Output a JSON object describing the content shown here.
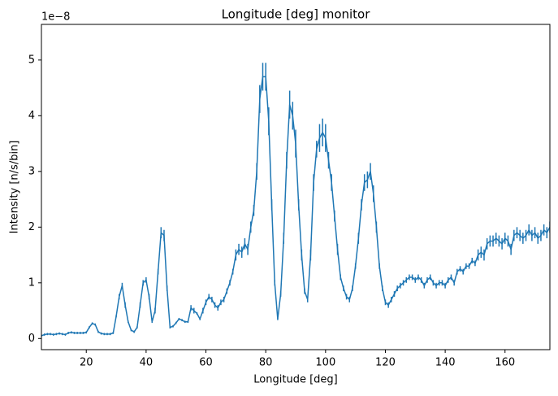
{
  "chart_data": {
    "type": "errorbar-line",
    "title": "Longitude [deg] monitor",
    "x_label": "Longitude [deg]",
    "y_label": "Intensity [n/s/bin]",
    "offset_text": "1e−8",
    "color": "#1f77b4",
    "xlim": [
      5,
      175
    ],
    "ylim": [
      -0.2,
      5.64
    ],
    "xticks": [
      20,
      40,
      60,
      80,
      100,
      120,
      140,
      160
    ],
    "yticks": [
      0,
      1,
      2,
      3,
      4,
      5
    ],
    "x": [
      5,
      6,
      7,
      8,
      9,
      10,
      11,
      12,
      13,
      14,
      15,
      16,
      17,
      18,
      19,
      20,
      21,
      22,
      23,
      24,
      25,
      26,
      27,
      28,
      29,
      30,
      31,
      32,
      33,
      34,
      35,
      36,
      37,
      38,
      39,
      40,
      41,
      42,
      43,
      44,
      45,
      46,
      47,
      48,
      49,
      50,
      51,
      52,
      53,
      54,
      55,
      56,
      57,
      58,
      59,
      60,
      61,
      62,
      63,
      64,
      65,
      66,
      67,
      68,
      69,
      70,
      71,
      72,
      73,
      74,
      75,
      76,
      77,
      78,
      79,
      80,
      81,
      82,
      83,
      84,
      85,
      86,
      87,
      88,
      89,
      90,
      91,
      92,
      93,
      94,
      95,
      96,
      97,
      98,
      99,
      100,
      101,
      102,
      103,
      104,
      105,
      106,
      107,
      108,
      109,
      110,
      111,
      112,
      113,
      114,
      115,
      116,
      117,
      118,
      119,
      120,
      121,
      122,
      123,
      124,
      125,
      126,
      127,
      128,
      129,
      130,
      131,
      132,
      133,
      134,
      135,
      136,
      137,
      138,
      139,
      140,
      141,
      142,
      143,
      144,
      145,
      146,
      147,
      148,
      149,
      150,
      151,
      152,
      153,
      154,
      155,
      156,
      157,
      158,
      159,
      160,
      161,
      162,
      163,
      164,
      165,
      166,
      167,
      168,
      169,
      170,
      171,
      172,
      173,
      174,
      175
    ],
    "values": [
      0.05,
      0.07,
      0.08,
      0.08,
      0.07,
      0.08,
      0.09,
      0.08,
      0.07,
      0.1,
      0.11,
      0.1,
      0.1,
      0.1,
      0.1,
      0.11,
      0.2,
      0.27,
      0.25,
      0.12,
      0.09,
      0.08,
      0.08,
      0.08,
      0.1,
      0.4,
      0.75,
      0.95,
      0.6,
      0.3,
      0.15,
      0.12,
      0.2,
      0.6,
      1.0,
      1.05,
      0.75,
      0.3,
      0.5,
      1.2,
      1.9,
      1.85,
      0.9,
      0.2,
      0.22,
      0.28,
      0.35,
      0.33,
      0.3,
      0.3,
      0.55,
      0.5,
      0.45,
      0.35,
      0.5,
      0.65,
      0.75,
      0.7,
      0.6,
      0.55,
      0.65,
      0.7,
      0.85,
      1.0,
      1.2,
      1.5,
      1.6,
      1.55,
      1.7,
      1.6,
      2.0,
      2.3,
      3.0,
      4.3,
      4.7,
      4.7,
      3.9,
      2.4,
      1.0,
      0.35,
      0.8,
      1.8,
      3.2,
      4.2,
      4.0,
      3.5,
      2.4,
      1.5,
      0.85,
      0.7,
      1.5,
      2.8,
      3.4,
      3.6,
      3.7,
      3.6,
      3.2,
      2.8,
      2.2,
      1.6,
      1.1,
      0.9,
      0.75,
      0.7,
      0.9,
      1.3,
      1.8,
      2.4,
      2.8,
      2.85,
      3.0,
      2.6,
      2.0,
      1.3,
      0.9,
      0.65,
      0.6,
      0.7,
      0.8,
      0.9,
      0.95,
      1.0,
      1.05,
      1.1,
      1.1,
      1.05,
      1.1,
      1.05,
      0.95,
      1.05,
      1.1,
      1.0,
      0.95,
      1.0,
      1.0,
      0.95,
      1.05,
      1.1,
      1.0,
      1.2,
      1.25,
      1.2,
      1.3,
      1.3,
      1.4,
      1.35,
      1.5,
      1.55,
      1.5,
      1.7,
      1.75,
      1.75,
      1.8,
      1.75,
      1.7,
      1.8,
      1.75,
      1.6,
      1.85,
      1.9,
      1.85,
      1.8,
      1.85,
      1.95,
      1.85,
      1.9,
      1.8,
      1.85,
      1.95,
      1.9,
      2.0
    ],
    "errors": [
      0.02,
      0.02,
      0.02,
      0.02,
      0.02,
      0.02,
      0.02,
      0.02,
      0.02,
      0.02,
      0.02,
      0.02,
      0.02,
      0.02,
      0.02,
      0.02,
      0.02,
      0.02,
      0.02,
      0.02,
      0.02,
      0.02,
      0.02,
      0.02,
      0.02,
      0.02,
      0.05,
      0.05,
      0.05,
      0.02,
      0.02,
      0.02,
      0.02,
      0.05,
      0.05,
      0.05,
      0.05,
      0.02,
      0.05,
      0.05,
      0.1,
      0.1,
      0.05,
      0.02,
      0.02,
      0.02,
      0.02,
      0.02,
      0.02,
      0.02,
      0.05,
      0.05,
      0.02,
      0.02,
      0.05,
      0.05,
      0.05,
      0.05,
      0.05,
      0.05,
      0.05,
      0.05,
      0.05,
      0.05,
      0.05,
      0.1,
      0.1,
      0.1,
      0.1,
      0.1,
      0.1,
      0.1,
      0.15,
      0.25,
      0.25,
      0.25,
      0.25,
      0.1,
      0.05,
      0.02,
      0.05,
      0.1,
      0.15,
      0.25,
      0.25,
      0.25,
      0.1,
      0.1,
      0.05,
      0.05,
      0.1,
      0.15,
      0.15,
      0.25,
      0.25,
      0.25,
      0.15,
      0.15,
      0.1,
      0.1,
      0.05,
      0.05,
      0.05,
      0.05,
      0.05,
      0.05,
      0.1,
      0.1,
      0.15,
      0.15,
      0.15,
      0.15,
      0.1,
      0.05,
      0.05,
      0.05,
      0.05,
      0.05,
      0.05,
      0.05,
      0.05,
      0.05,
      0.05,
      0.05,
      0.05,
      0.05,
      0.05,
      0.05,
      0.05,
      0.05,
      0.05,
      0.05,
      0.05,
      0.05,
      0.05,
      0.05,
      0.05,
      0.05,
      0.05,
      0.05,
      0.05,
      0.05,
      0.05,
      0.05,
      0.05,
      0.05,
      0.1,
      0.1,
      0.1,
      0.1,
      0.1,
      0.1,
      0.1,
      0.1,
      0.1,
      0.1,
      0.1,
      0.1,
      0.1,
      0.1,
      0.1,
      0.1,
      0.1,
      0.1,
      0.1,
      0.1,
      0.1,
      0.1,
      0.1,
      0.1,
      0.1
    ]
  }
}
